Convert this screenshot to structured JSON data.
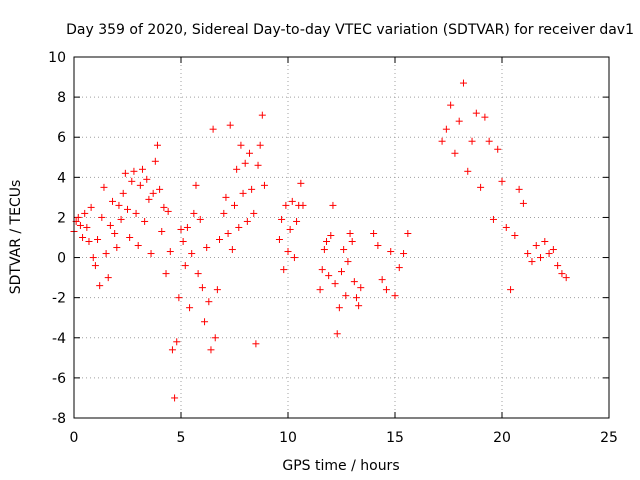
{
  "chart_data": {
    "type": "scatter",
    "title": "Day 359 of 2020, Sidereal Day-to-day VTEC variation (SDTVAR) for receiver dav1",
    "xlabel": "GPS time / hours",
    "ylabel": "SDTVAR / TECUs",
    "xlim": [
      0,
      25
    ],
    "ylim": [
      -8,
      10
    ],
    "xticks": [
      "0",
      "5",
      "10",
      "15",
      "20",
      "25"
    ],
    "yticks": [
      "-8",
      "-6",
      "-4",
      "-2",
      "0",
      "2",
      "4",
      "6",
      "8",
      "10"
    ],
    "grid": true,
    "marker": "+",
    "series": [
      {
        "name": "SDTVAR",
        "color": "#ff0000",
        "x": [
          0,
          0.1,
          0.2,
          0.3,
          0.4,
          0.5,
          0.6,
          0.7,
          0.8,
          0.9,
          1.0,
          1.1,
          1.2,
          1.3,
          1.4,
          1.5,
          1.6,
          1.7,
          1.8,
          1.9,
          2.0,
          2.1,
          2.2,
          2.3,
          2.4,
          2.5,
          2.6,
          2.7,
          2.8,
          2.9,
          3.0,
          3.1,
          3.2,
          3.3,
          3.4,
          3.5,
          3.6,
          3.7,
          3.8,
          3.9,
          4.0,
          4.1,
          4.2,
          4.3,
          4.4,
          4.5,
          4.6,
          4.7,
          4.8,
          4.9,
          5.0,
          5.1,
          5.2,
          5.3,
          5.4,
          5.5,
          5.6,
          5.7,
          5.8,
          5.9,
          6.0,
          6.1,
          6.2,
          6.3,
          6.4,
          6.5,
          6.6,
          6.7,
          6.8,
          7.0,
          7.1,
          7.2,
          7.3,
          7.4,
          7.5,
          7.6,
          7.7,
          7.8,
          7.9,
          8.0,
          8.1,
          8.2,
          8.3,
          8.4,
          8.5,
          8.6,
          8.7,
          8.8,
          8.9,
          9.6,
          9.7,
          9.8,
          9.9,
          10.0,
          10.1,
          10.2,
          10.3,
          10.4,
          10.5,
          10.6,
          10.7,
          11.5,
          11.6,
          11.7,
          11.8,
          11.9,
          12.0,
          12.1,
          12.2,
          12.3,
          12.4,
          12.5,
          12.6,
          12.7,
          12.8,
          12.9,
          13.0,
          13.1,
          13.2,
          13.3,
          13.4,
          14.0,
          14.2,
          14.4,
          14.6,
          14.8,
          15.0,
          15.2,
          15.4,
          15.6,
          17.2,
          17.4,
          17.6,
          17.8,
          18.0,
          18.2,
          18.4,
          18.6,
          18.8,
          19.0,
          19.2,
          19.4,
          19.6,
          19.8,
          20.0,
          20.2,
          20.4,
          20.6,
          20.8,
          21.0,
          21.2,
          21.4,
          21.6,
          21.8,
          22.0,
          22.2,
          22.4,
          22.6,
          22.8,
          23.0
        ],
        "y": [
          1.3,
          1.8,
          2.0,
          1.6,
          1.0,
          2.2,
          1.5,
          0.8,
          2.5,
          0.0,
          -0.4,
          0.9,
          -1.4,
          2.0,
          3.5,
          0.2,
          -1.0,
          1.6,
          2.8,
          1.2,
          0.5,
          2.6,
          1.9,
          3.2,
          4.2,
          2.4,
          1.0,
          3.8,
          4.3,
          2.2,
          0.6,
          3.6,
          4.4,
          1.8,
          3.9,
          2.9,
          0.2,
          3.2,
          4.8,
          5.6,
          3.4,
          1.3,
          2.5,
          -0.8,
          2.3,
          0.3,
          -4.6,
          -7.0,
          -4.2,
          -2.0,
          1.4,
          0.8,
          -0.4,
          1.5,
          -2.5,
          0.2,
          2.2,
          3.6,
          -0.8,
          1.9,
          -1.5,
          -3.2,
          0.5,
          -2.2,
          -4.6,
          6.4,
          -4.0,
          -1.6,
          0.9,
          2.2,
          3.0,
          1.2,
          6.6,
          0.4,
          2.6,
          4.4,
          1.5,
          5.6,
          3.2,
          4.7,
          1.8,
          5.2,
          3.4,
          2.2,
          -4.3,
          4.6,
          5.6,
          7.1,
          3.6,
          0.9,
          1.9,
          -0.6,
          2.6,
          0.3,
          1.4,
          2.8,
          0.0,
          1.8,
          2.6,
          3.7,
          2.6,
          -1.6,
          -0.6,
          0.4,
          0.8,
          -0.9,
          1.1,
          2.6,
          -1.3,
          -3.8,
          -2.5,
          -0.7,
          0.4,
          -1.9,
          -0.2,
          1.2,
          0.8,
          -1.2,
          -2.0,
          -2.4,
          -1.5,
          1.2,
          0.6,
          -1.1,
          -1.6,
          0.3,
          -1.9,
          -0.5,
          0.2,
          1.2,
          5.8,
          6.4,
          7.6,
          5.2,
          6.8,
          8.7,
          4.3,
          5.8,
          7.2,
          3.5,
          7.0,
          5.8,
          1.9,
          5.4,
          3.8,
          1.5,
          -1.6,
          1.1,
          3.4,
          2.7,
          0.2,
          -0.2,
          0.6,
          0.0,
          0.8,
          0.2,
          0.4,
          -0.4,
          -0.8,
          -1.0
        ]
      }
    ]
  }
}
